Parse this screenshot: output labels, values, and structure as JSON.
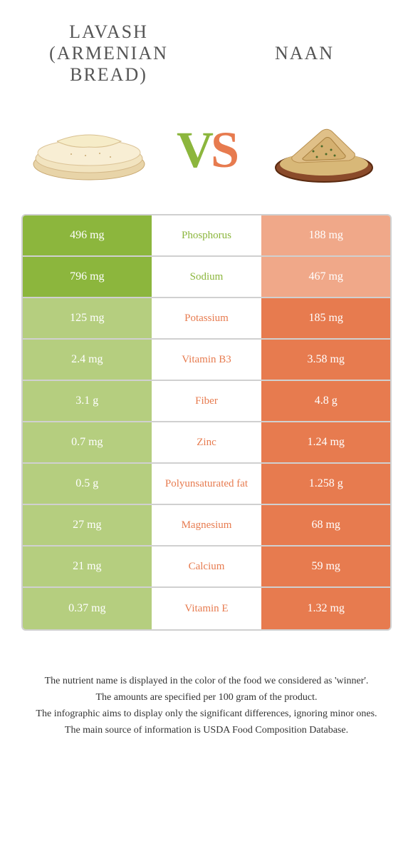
{
  "colors": {
    "left": "#8cb63d",
    "right": "#e77b4f",
    "left_dim": "#b5ce7f",
    "right_dim": "#f0a889",
    "text_dark": "#555555"
  },
  "header": {
    "left_title": "LAVASH (ARMENIAN BREAD)",
    "right_title": "NAAN",
    "vs_v": "V",
    "vs_s": "S"
  },
  "rows": [
    {
      "nutrient": "Phosphorus",
      "left": "496 mg",
      "right": "188 mg",
      "winner": "left"
    },
    {
      "nutrient": "Sodium",
      "left": "796 mg",
      "right": "467 mg",
      "winner": "left"
    },
    {
      "nutrient": "Potassium",
      "left": "125 mg",
      "right": "185 mg",
      "winner": "right"
    },
    {
      "nutrient": "Vitamin B3",
      "left": "2.4 mg",
      "right": "3.58 mg",
      "winner": "right"
    },
    {
      "nutrient": "Fiber",
      "left": "3.1 g",
      "right": "4.8 g",
      "winner": "right"
    },
    {
      "nutrient": "Zinc",
      "left": "0.7 mg",
      "right": "1.24 mg",
      "winner": "right"
    },
    {
      "nutrient": "Polyunsaturated fat",
      "left": "0.5 g",
      "right": "1.258 g",
      "winner": "right"
    },
    {
      "nutrient": "Magnesium",
      "left": "27 mg",
      "right": "68 mg",
      "winner": "right"
    },
    {
      "nutrient": "Calcium",
      "left": "21 mg",
      "right": "59 mg",
      "winner": "right"
    },
    {
      "nutrient": "Vitamin E",
      "left": "0.37 mg",
      "right": "1.32 mg",
      "winner": "right"
    }
  ],
  "footnotes": [
    "The nutrient name is displayed in the color of the food we considered as 'winner'.",
    "The amounts are specified per 100 gram of the product.",
    "The infographic aims to display only the significant differences, ignoring minor ones.",
    "The main source of information is USDA Food Composition Database."
  ]
}
